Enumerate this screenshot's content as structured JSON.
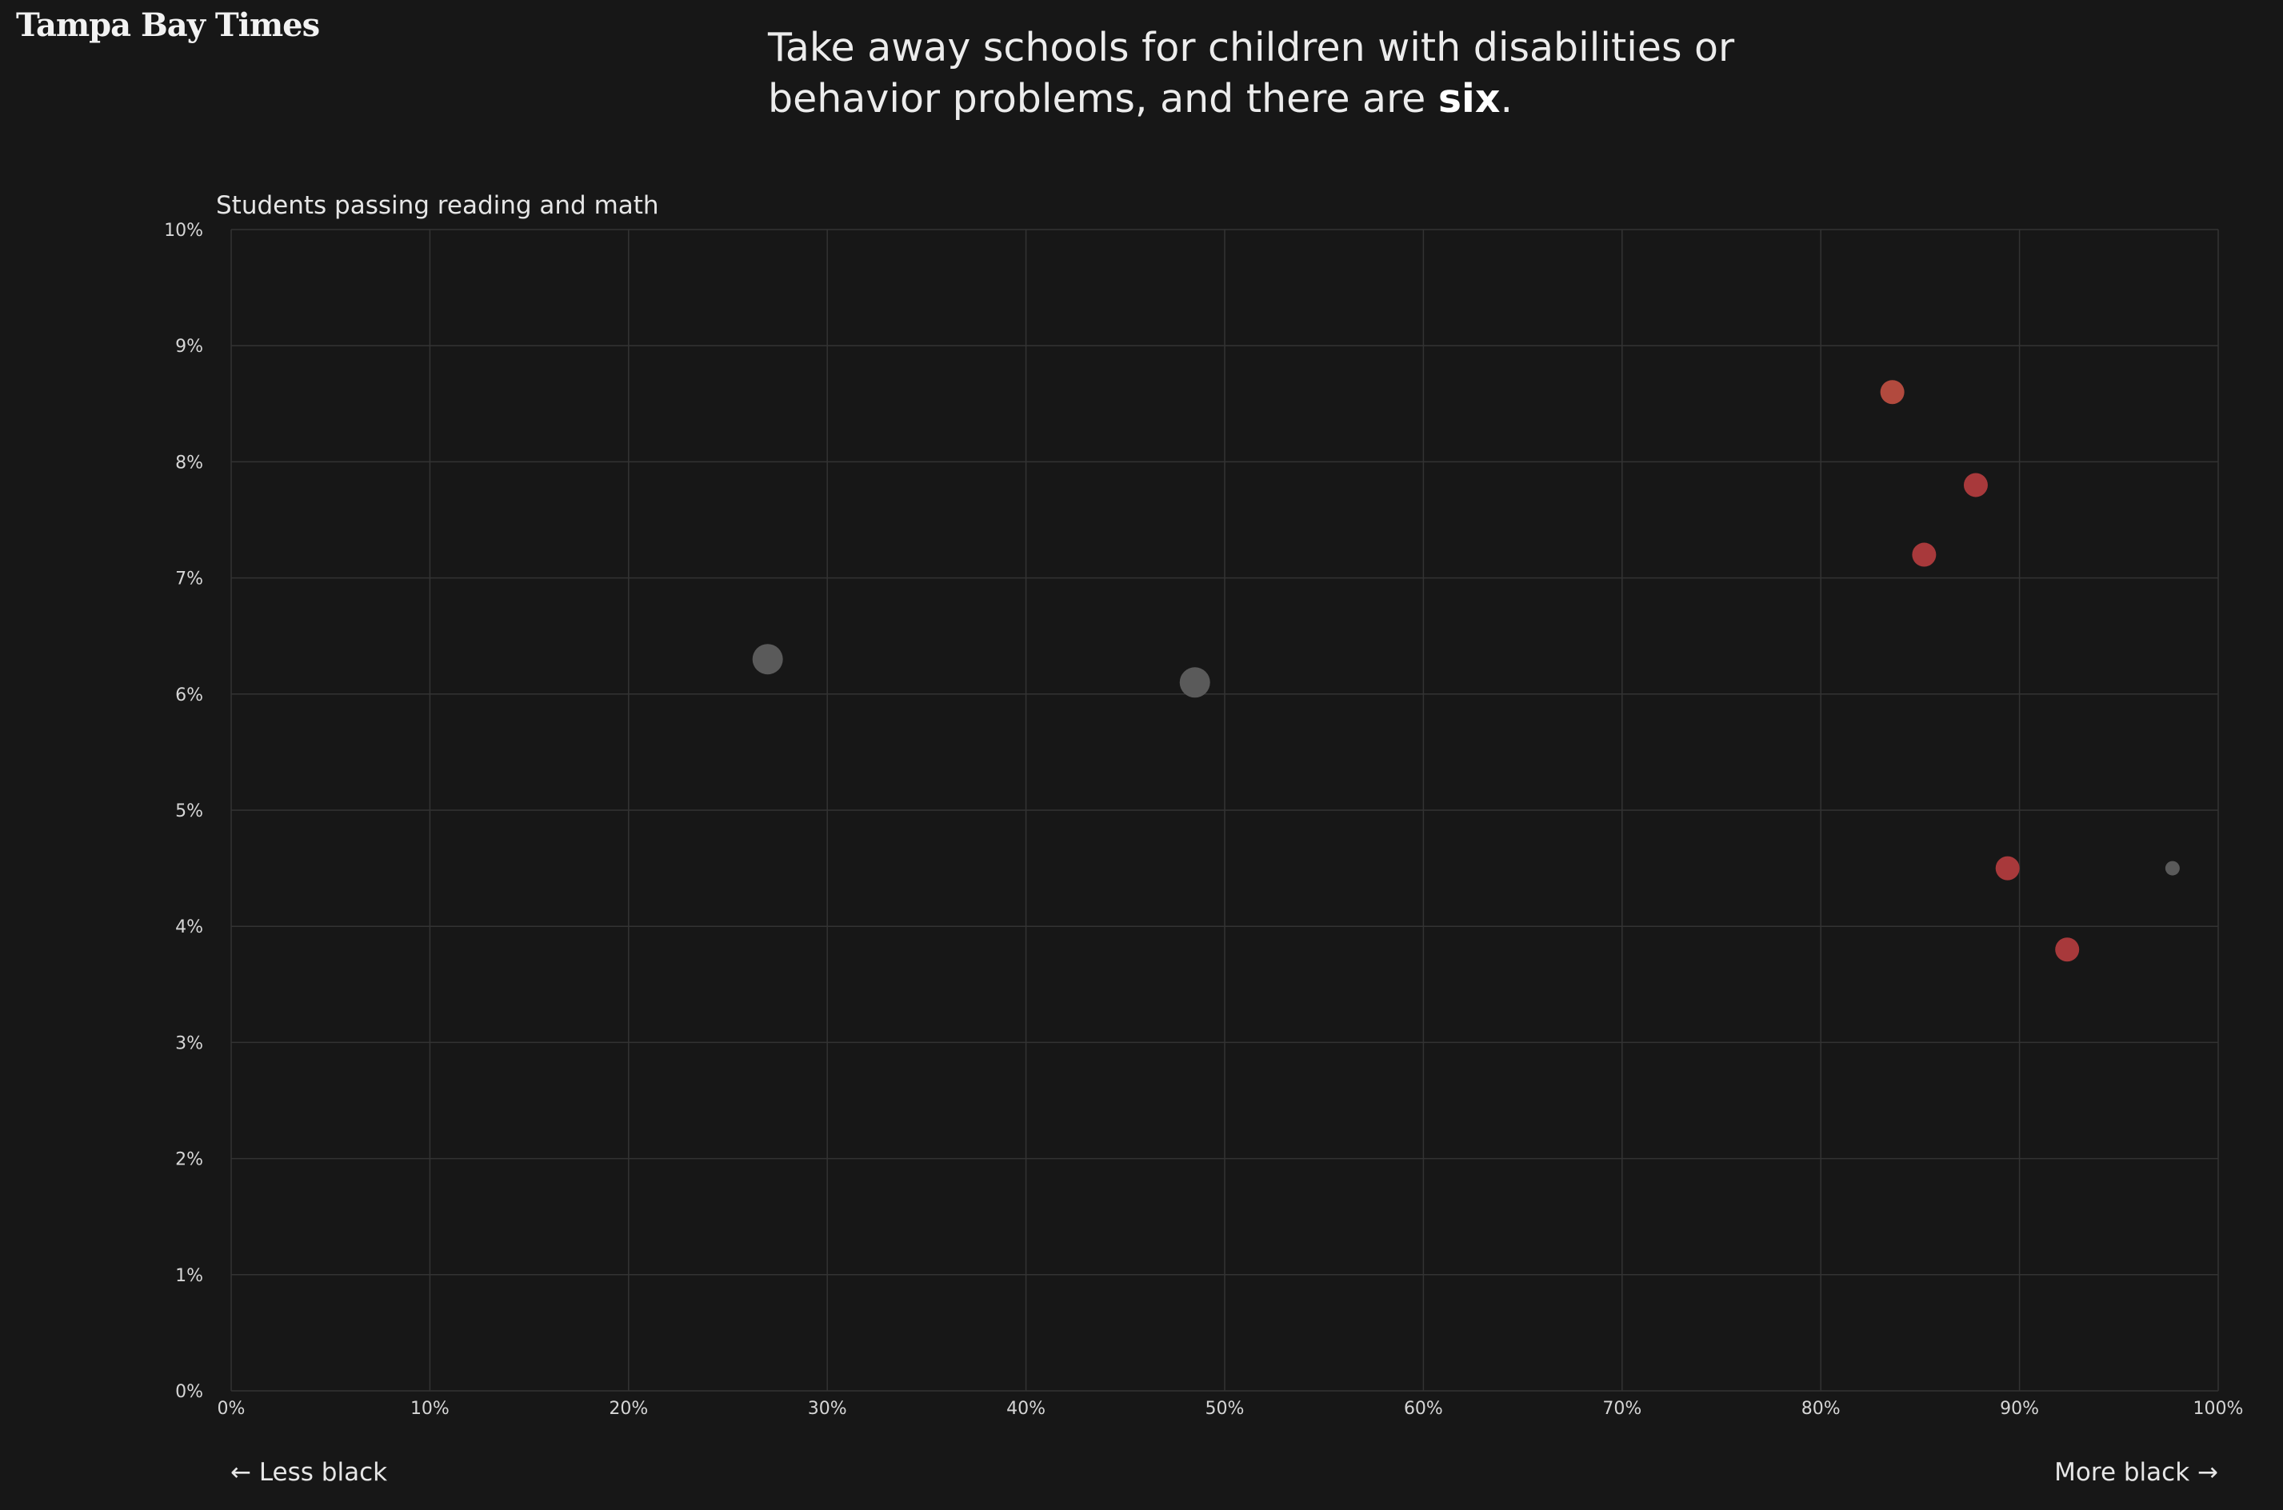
{
  "branding": {
    "logo": "Tampa Bay Times"
  },
  "headline": {
    "part1": "Take away schools for children with disabilities or",
    "part2": "behavior problems, and there are ",
    "emphasis": "six",
    "end": "."
  },
  "chart_data": {
    "type": "scatter",
    "title": "Students passing reading and math",
    "xlabel_left": "← Less black",
    "xlabel_right": "More black →",
    "xlim": [
      0,
      100
    ],
    "ylim": [
      0,
      10
    ],
    "x_ticks": [
      "0%",
      "10%",
      "20%",
      "30%",
      "40%",
      "50%",
      "60%",
      "70%",
      "80%",
      "90%",
      "100%"
    ],
    "y_ticks": [
      "0%",
      "1%",
      "2%",
      "3%",
      "4%",
      "5%",
      "6%",
      "7%",
      "8%",
      "9%",
      "10%"
    ],
    "grid": true,
    "colors": {
      "highlight": "#a8393b",
      "highlight_alt": "#b24a3e",
      "other": "#5a5a5a",
      "grid": "#333333",
      "axis_text": "#d6d6d6"
    },
    "points": [
      {
        "x": 27.0,
        "y": 6.3,
        "size": "large",
        "highlight": false
      },
      {
        "x": 48.5,
        "y": 6.1,
        "size": "large",
        "highlight": false
      },
      {
        "x": 83.6,
        "y": 8.6,
        "size": "medium",
        "highlight": true
      },
      {
        "x": 87.8,
        "y": 7.8,
        "size": "medium",
        "highlight": true
      },
      {
        "x": 85.2,
        "y": 7.2,
        "size": "medium",
        "highlight": true
      },
      {
        "x": 89.4,
        "y": 4.5,
        "size": "medium",
        "highlight": true
      },
      {
        "x": 92.4,
        "y": 3.8,
        "size": "medium",
        "highlight": true
      },
      {
        "x": 97.7,
        "y": 4.5,
        "size": "small",
        "highlight": false
      }
    ]
  }
}
